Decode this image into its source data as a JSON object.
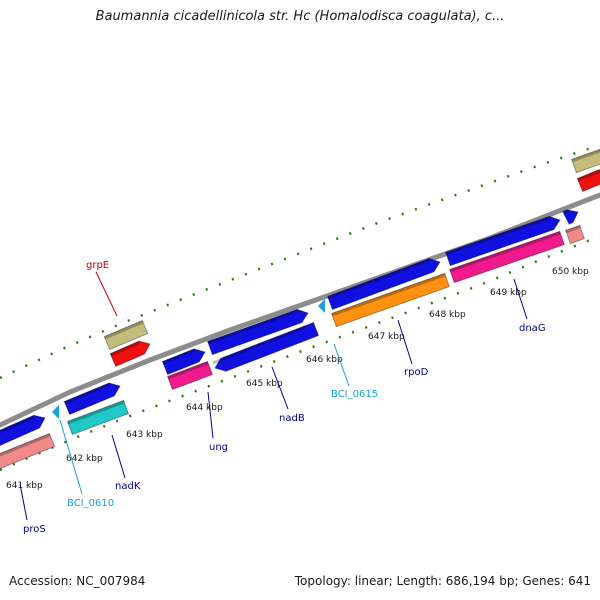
{
  "title": "Baumannia cicadellinicola str. Hc (Homalodisca coagulata), c...",
  "footer": {
    "accession": "Accession: NC_007984",
    "stats": "Topology: linear; Length: 686,194 bp; Genes: 641"
  },
  "colors": {
    "backbone": "#8c8c8c",
    "tick": "#2e7d10",
    "gene_blue": "#1010e0",
    "gene_pink": "#f01a8c",
    "gene_salmon": "#f28a8a",
    "gene_cyan": "#20c8c8",
    "gene_orange": "#ff9010",
    "gene_khaki": "#c4bc7c",
    "gene_red": "#f01010",
    "label_blue": "#00008b",
    "label_cyan": "#18a0d8",
    "label_red": "#cc0000"
  },
  "kbp_labels": [
    "641 kbp",
    "642 kbp",
    "643 kbp",
    "644 kbp",
    "645 kbp",
    "646 kbp",
    "647 kbp",
    "648 kbp",
    "649 kbp",
    "650 kbp"
  ],
  "gene_labels": [
    "proS",
    "BCI_0610",
    "nadK",
    "ung",
    "nadB",
    "BCI_0615",
    "rpoD",
    "dnaG",
    "grpE"
  ]
}
